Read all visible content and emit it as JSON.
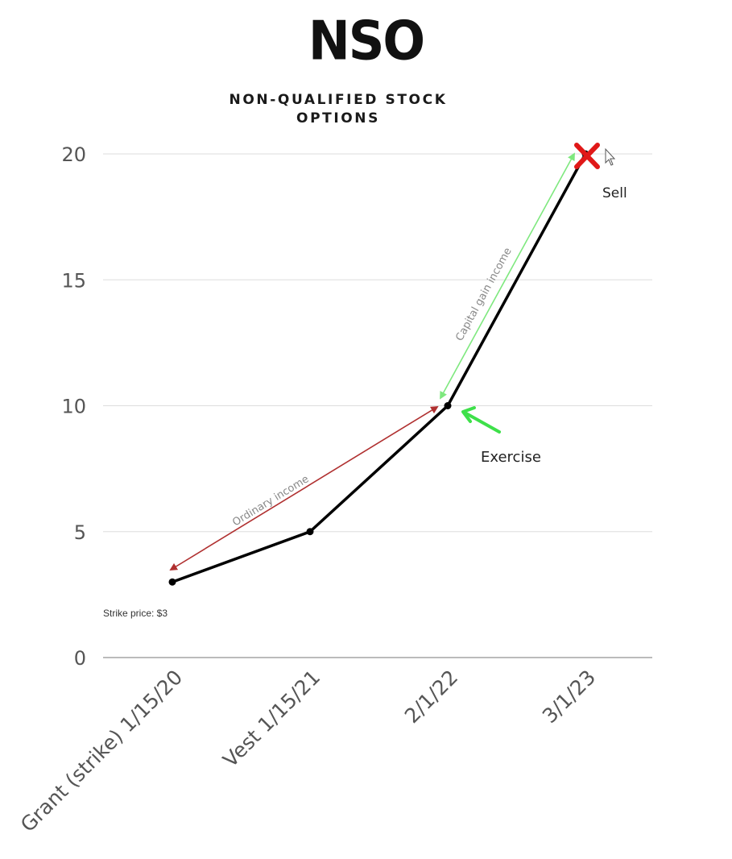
{
  "header": {
    "title": "NSO",
    "subtitle": "NON-QUALIFIED STOCK OPTIONS"
  },
  "chart_data": {
    "type": "line",
    "title": "NSO",
    "subtitle": "NON-QUALIFIED STOCK OPTIONS",
    "xlabel": "",
    "ylabel": "",
    "categories": [
      "Grant (strike) 1/15/20",
      "Vest 1/15/21",
      "2/1/22",
      "3/1/23"
    ],
    "series": [
      {
        "values": [
          3,
          5,
          10,
          20
        ],
        "color": "#000000"
      }
    ],
    "ylim": [
      0,
      20
    ],
    "yticks": [
      0,
      5,
      10,
      15,
      20
    ],
    "grid": true,
    "legend": "none",
    "annotations": {
      "strike_note": "Strike price: $3",
      "ordinary_income": "Ordinary income",
      "capital_gain": "Capital gain income",
      "exercise": "Exercise",
      "sell": "Sell"
    },
    "colors": {
      "line": "#000000",
      "grid": "#dddddd",
      "ordinary_arrow": "#b03030",
      "capital_arrow": "#7ee87e",
      "exercise_arrow": "#3ee04a",
      "sell_mark": "#e01818"
    }
  }
}
